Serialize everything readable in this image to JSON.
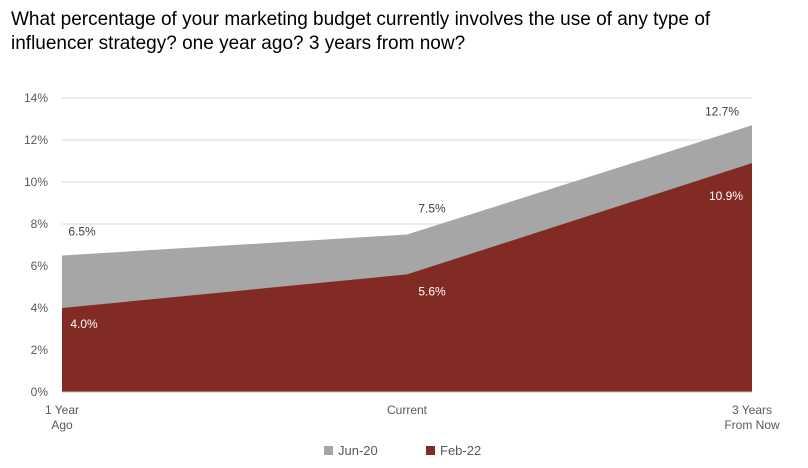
{
  "chart_data": {
    "type": "area",
    "stacked": false,
    "title": "What percentage of your marketing budget currently involves the use of any type of influencer strategy? one year ago? 3 years from now?",
    "categories": [
      [
        "1 Year",
        "Ago"
      ],
      [
        "Current"
      ],
      [
        "3 Years",
        "From Now"
      ]
    ],
    "series": [
      {
        "name": "Jun-20",
        "values": [
          6.5,
          7.5,
          12.7
        ],
        "labels": [
          "6.5%",
          "7.5%",
          "12.7%"
        ],
        "color": "#a6a6a6",
        "label_color": "#404040"
      },
      {
        "name": "Feb-22",
        "values": [
          4.0,
          5.6,
          10.9
        ],
        "labels": [
          "4.0%",
          "5.6%",
          "10.9%"
        ],
        "color": "#822b24",
        "label_color": "#ffffff"
      }
    ],
    "ylim": [
      0,
      14
    ],
    "y_ticks": [
      0,
      2,
      4,
      6,
      8,
      10,
      12,
      14
    ],
    "y_tick_labels": [
      "0%",
      "2%",
      "4%",
      "6%",
      "8%",
      "10%",
      "12%",
      "14%"
    ],
    "grid": true,
    "legend_position": "bottom"
  }
}
